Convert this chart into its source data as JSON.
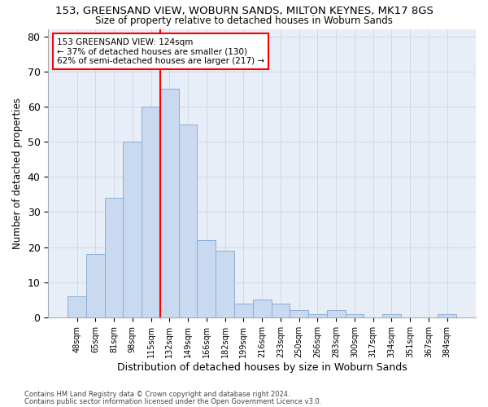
{
  "title1": "153, GREENSAND VIEW, WOBURN SANDS, MILTON KEYNES, MK17 8GS",
  "title2": "Size of property relative to detached houses in Woburn Sands",
  "xlabel": "Distribution of detached houses by size in Woburn Sands",
  "ylabel": "Number of detached properties",
  "footer1": "Contains HM Land Registry data © Crown copyright and database right 2024.",
  "footer2": "Contains public sector information licensed under the Open Government Licence v3.0.",
  "categories": [
    "48sqm",
    "65sqm",
    "81sqm",
    "98sqm",
    "115sqm",
    "132sqm",
    "149sqm",
    "166sqm",
    "182sqm",
    "199sqm",
    "216sqm",
    "233sqm",
    "250sqm",
    "266sqm",
    "283sqm",
    "300sqm",
    "317sqm",
    "334sqm",
    "351sqm",
    "367sqm",
    "384sqm"
  ],
  "values": [
    6,
    18,
    34,
    50,
    60,
    65,
    55,
    22,
    19,
    4,
    5,
    4,
    2,
    1,
    2,
    1,
    0,
    1,
    0,
    0,
    1
  ],
  "bar_color": "#c8d9f0",
  "bar_edge_color": "#8aaed4",
  "vline_color": "red",
  "vline_x_index": 4.5,
  "annotation_line1": "153 GREENSAND VIEW: 124sqm",
  "annotation_line2": "← 37% of detached houses are smaller (130)",
  "annotation_line3": "62% of semi-detached houses are larger (217) →",
  "annotation_box_color": "white",
  "annotation_box_edge": "red",
  "ylim": [
    0,
    82
  ],
  "yticks": [
    0,
    10,
    20,
    30,
    40,
    50,
    60,
    70,
    80
  ],
  "grid_color": "#c8d0dc",
  "background_color": "#e8eef8"
}
